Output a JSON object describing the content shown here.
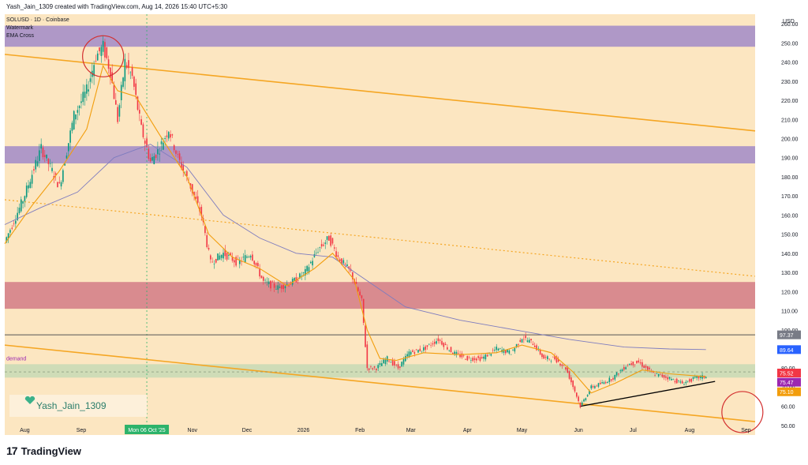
{
  "header": {
    "credit": "Yash_Jain_1309 created with TradingView.com, Aug 14, 2026 15:40 UTC+5:30"
  },
  "legend": {
    "symbol": "SOLUSD · 1D · Coinbase",
    "watermark_label": "Watermark",
    "ema_label": "EMA Cross"
  },
  "watermark_text": "Yash_Jain_1309",
  "footer": {
    "brand": "TradingView"
  },
  "currency": "USD",
  "colors": {
    "background": "#fce6c1",
    "zone_purple": "#9b84c8",
    "zone_red": "#cf7482",
    "zone_demand": "#c3d9b4",
    "channel": "#f5a623",
    "candle_up": "#089981",
    "candle_down": "#f23645",
    "ema_fast": "#f29d0c",
    "ema_slow": "#7e7cbf"
  },
  "chart_data": {
    "type": "candlestick",
    "title": "SOLUSD · 1D · Coinbase",
    "ylim": [
      45,
      265
    ],
    "y_ticks": [
      50,
      60,
      70,
      80,
      90,
      100,
      110,
      120,
      130,
      140,
      150,
      160,
      170,
      180,
      190,
      200,
      210,
      220,
      230,
      240,
      250,
      260
    ],
    "x_ticks": [
      "Aug",
      "Sep",
      "Mon 06 Oct '25",
      "Nov",
      "Dec",
      "2026",
      "Feb",
      "Mar",
      "Apr",
      "May",
      "Jun",
      "Jul",
      "Aug",
      "Sep"
    ],
    "x_tick_days": [
      11,
      42,
      78,
      103,
      133,
      164,
      195,
      223,
      254,
      284,
      315,
      345,
      376,
      407
    ],
    "price_path": [
      [
        0,
        146
      ],
      [
        10,
        168
      ],
      [
        20,
        195
      ],
      [
        30,
        175
      ],
      [
        38,
        212
      ],
      [
        45,
        225
      ],
      [
        50,
        243
      ],
      [
        54,
        248
      ],
      [
        58,
        235
      ],
      [
        62,
        210
      ],
      [
        66,
        240
      ],
      [
        70,
        232
      ],
      [
        75,
        205
      ],
      [
        80,
        188
      ],
      [
        85,
        195
      ],
      [
        90,
        205
      ],
      [
        95,
        190
      ],
      [
        102,
        175
      ],
      [
        108,
        160
      ],
      [
        113,
        135
      ],
      [
        120,
        140
      ],
      [
        128,
        135
      ],
      [
        135,
        140
      ],
      [
        142,
        125
      ],
      [
        150,
        122
      ],
      [
        158,
        125
      ],
      [
        165,
        130
      ],
      [
        172,
        142
      ],
      [
        178,
        148
      ],
      [
        183,
        138
      ],
      [
        190,
        130
      ],
      [
        196,
        115
      ],
      [
        199,
        80
      ],
      [
        204,
        80
      ],
      [
        210,
        85
      ],
      [
        216,
        80
      ],
      [
        222,
        88
      ],
      [
        230,
        90
      ],
      [
        238,
        95
      ],
      [
        246,
        88
      ],
      [
        254,
        85
      ],
      [
        262,
        85
      ],
      [
        270,
        90
      ],
      [
        278,
        88
      ],
      [
        284,
        96
      ],
      [
        290,
        93
      ],
      [
        296,
        85
      ],
      [
        302,
        85
      ],
      [
        308,
        80
      ],
      [
        313,
        68
      ],
      [
        316,
        60
      ],
      [
        322,
        70
      ],
      [
        328,
        72
      ],
      [
        334,
        75
      ],
      [
        342,
        82
      ],
      [
        348,
        83
      ],
      [
        356,
        77
      ],
      [
        364,
        75
      ],
      [
        372,
        72
      ],
      [
        380,
        75
      ],
      [
        385,
        75.5
      ]
    ],
    "ema_fast_path": [
      [
        0,
        145
      ],
      [
        15,
        165
      ],
      [
        30,
        183
      ],
      [
        45,
        205
      ],
      [
        54,
        238
      ],
      [
        62,
        225
      ],
      [
        72,
        222
      ],
      [
        85,
        202
      ],
      [
        100,
        180
      ],
      [
        112,
        150
      ],
      [
        125,
        138
      ],
      [
        140,
        132
      ],
      [
        155,
        123
      ],
      [
        170,
        132
      ],
      [
        180,
        140
      ],
      [
        192,
        126
      ],
      [
        199,
        100
      ],
      [
        206,
        85
      ],
      [
        215,
        84
      ],
      [
        230,
        88
      ],
      [
        250,
        87
      ],
      [
        270,
        88
      ],
      [
        284,
        92
      ],
      [
        300,
        88
      ],
      [
        312,
        78
      ],
      [
        322,
        67
      ],
      [
        335,
        72
      ],
      [
        350,
        79
      ],
      [
        365,
        77
      ],
      [
        385,
        75.5
      ]
    ],
    "ema_slow_path": [
      [
        0,
        155
      ],
      [
        20,
        164
      ],
      [
        40,
        172
      ],
      [
        60,
        190
      ],
      [
        80,
        197
      ],
      [
        100,
        185
      ],
      [
        120,
        160
      ],
      [
        140,
        148
      ],
      [
        160,
        140
      ],
      [
        180,
        138
      ],
      [
        200,
        125
      ],
      [
        220,
        112
      ],
      [
        250,
        105
      ],
      [
        280,
        100
      ],
      [
        310,
        95
      ],
      [
        340,
        91
      ],
      [
        365,
        90
      ],
      [
        385,
        89.64
      ]
    ],
    "zones": [
      {
        "name": "purple-upper",
        "y_range": [
          248,
          259
        ],
        "color": "#9b84c8"
      },
      {
        "name": "purple-mid",
        "y_range": [
          187,
          196
        ],
        "color": "#9b84c8"
      },
      {
        "name": "red",
        "y_range": [
          111,
          125
        ],
        "color": "#cf7482"
      },
      {
        "name": "demand",
        "label": "demand",
        "y_range": [
          75,
          82
        ],
        "color": "#c3d9b4"
      }
    ],
    "channel_upper": [
      [
        0,
        244
      ],
      [
        412,
        204
      ]
    ],
    "channel_lower": [
      [
        0,
        92
      ],
      [
        412,
        52
      ]
    ],
    "mid_dotted": [
      [
        0,
        168
      ],
      [
        412,
        128
      ]
    ],
    "trendline": [
      [
        316,
        60
      ],
      [
        390,
        73
      ]
    ],
    "horizontal_lines": [
      97.37,
      78
    ],
    "circles": [
      {
        "day": 54,
        "price": 243
      },
      {
        "day": 405,
        "price": 57
      }
    ],
    "price_labels": [
      {
        "value": "97.37",
        "y": 97.37,
        "color": "#787b86"
      },
      {
        "value": "89.64",
        "y": 89.64,
        "color": "#2962ff"
      },
      {
        "value": "75.52",
        "y": 77.4,
        "color": "#f23645"
      },
      {
        "value": "75.47",
        "y": 72.6,
        "color": "#9c27b0"
      },
      {
        "value": "75.10",
        "y": 67.6,
        "color": "#f29d0c"
      }
    ]
  }
}
